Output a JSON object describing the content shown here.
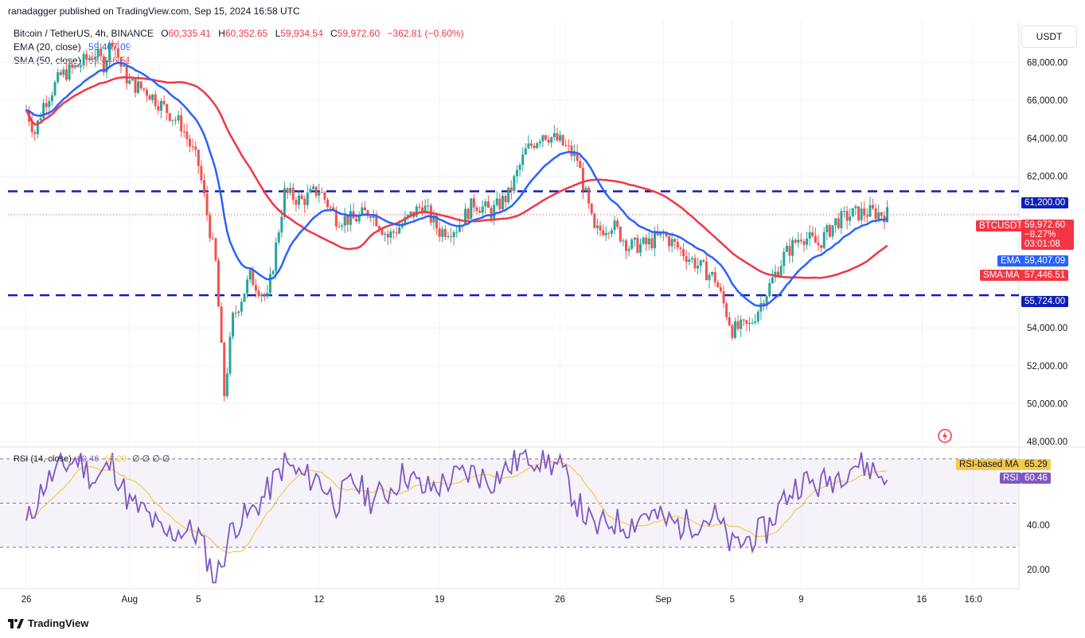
{
  "credit": "ranadagger published on TradingView.com, Sep 15, 2024 16:58 UTC",
  "symbol_line": "Bitcoin / TetherUS, 4h, BINANCE",
  "ohlc": {
    "o_label": "O",
    "o": "60,335.41",
    "h_label": "H",
    "h": "60,352.65",
    "l_label": "L",
    "l": "59,934.54",
    "c_label": "C",
    "c": "59,972.60",
    "chg": "−362.81 (−0.60%)"
  },
  "ema_legend": {
    "label": "EMA (20, close)",
    "value": "59,407.09"
  },
  "sma_legend": {
    "label": "SMA (50, close)",
    "value": "57,446.51"
  },
  "rsi_legend": {
    "label": "RSI (14, close)",
    "rsi": "60.46",
    "ma": "65.29",
    "zeros": "∅ ∅ ∅ ∅"
  },
  "currency": "USDT",
  "tags": {
    "resistance": "61,200.00",
    "support": "55,724.00",
    "btc_name": "BTCUSDT",
    "btc_price": "59,972.60",
    "btc_change": "−8.27%",
    "btc_timer": "03:01:08",
    "ema_name": "EMA",
    "ema_val": "59,407.09",
    "sma_name": "SMA:MA",
    "sma_val": "57,446.51",
    "rsi_ma_name": "RSI-based MA",
    "rsi_ma_val": "65.29",
    "rsi_name": "RSI",
    "rsi_val": "60.46"
  },
  "brand": "TradingView",
  "colors": {
    "up": "#26a69a",
    "down": "#ef5350",
    "ema": "#2962ff",
    "sma": "#f23645",
    "rsi": "#7e57c2",
    "rsima": "#f7c948",
    "level": "#0d1fb5"
  },
  "chart_data": {
    "type": "candlestick",
    "title": "Bitcoin / TetherUS, 4h, BINANCE",
    "price_axis_ticks": [
      "68,000.00",
      "66,000.00",
      "64,000.00",
      "62,000.00",
      "54,000.00",
      "52,000.00",
      "50,000.00",
      "48,000.00"
    ],
    "price_axis_values": [
      68000,
      66000,
      64000,
      62000,
      54000,
      52000,
      50000,
      48000
    ],
    "ylim": [
      47800,
      70200
    ],
    "x_ticks": [
      "26",
      "Aug",
      "5",
      "12",
      "19",
      "26",
      "Sep",
      "5",
      "9",
      "16",
      "16:0"
    ],
    "x_tick_positions_days": [
      0,
      6,
      10,
      17,
      24,
      31,
      37,
      41,
      45,
      52,
      55
    ],
    "date_range_days": [
      0,
      55.6
    ],
    "levels": [
      {
        "name": "resistance",
        "value": 61200
      },
      {
        "name": "support",
        "value": 55724
      }
    ],
    "series": [
      {
        "name": "price",
        "anchors": [
          [
            0,
            65500
          ],
          [
            0.5,
            64300
          ],
          [
            1,
            65800
          ],
          [
            2,
            67300
          ],
          [
            3,
            67800
          ],
          [
            4,
            68500
          ],
          [
            4.5,
            67900
          ],
          [
            5,
            69300
          ],
          [
            5.5,
            67800
          ],
          [
            6,
            66900
          ],
          [
            7,
            66500
          ],
          [
            8,
            65600
          ],
          [
            9,
            64700
          ],
          [
            10,
            62600
          ],
          [
            11,
            57400
          ],
          [
            11.5,
            50500
          ],
          [
            12,
            54500
          ],
          [
            13,
            56700
          ],
          [
            14,
            55500
          ],
          [
            15,
            61100
          ],
          [
            16,
            60700
          ],
          [
            17,
            61300
          ],
          [
            18,
            59800
          ],
          [
            19,
            59700
          ],
          [
            20,
            60200
          ],
          [
            21,
            58800
          ],
          [
            22,
            59600
          ],
          [
            23,
            60500
          ],
          [
            24,
            59100
          ],
          [
            25,
            59300
          ],
          [
            26,
            60600
          ],
          [
            27,
            60100
          ],
          [
            28,
            61000
          ],
          [
            29,
            63300
          ],
          [
            30,
            64300
          ],
          [
            31,
            63800
          ],
          [
            32,
            62900
          ],
          [
            33,
            59000
          ],
          [
            34,
            59500
          ],
          [
            35,
            58300
          ],
          [
            36,
            58400
          ],
          [
            37,
            58900
          ],
          [
            38,
            58100
          ],
          [
            39,
            57300
          ],
          [
            40,
            56600
          ],
          [
            41,
            53900
          ],
          [
            42,
            54100
          ],
          [
            43,
            55900
          ],
          [
            44,
            57800
          ],
          [
            45,
            58900
          ],
          [
            46,
            58400
          ],
          [
            47,
            59600
          ],
          [
            48,
            60000
          ],
          [
            49,
            60100
          ],
          [
            50,
            60000
          ]
        ]
      },
      {
        "name": "EMA (20, close)",
        "last": 59407.09
      },
      {
        "name": "SMA (50, close)",
        "last": 57446.51
      }
    ],
    "rsi": {
      "label": "RSI (14, close)",
      "ticks": [
        "40.00",
        "20.00"
      ],
      "upper": 70,
      "lower": 30,
      "middle": 50,
      "ylim": [
        12,
        75
      ],
      "anchors": [
        [
          0,
          40
        ],
        [
          1,
          58
        ],
        [
          2,
          66
        ],
        [
          3,
          70
        ],
        [
          4,
          60
        ],
        [
          5,
          68
        ],
        [
          6,
          50
        ],
        [
          7,
          45
        ],
        [
          8,
          35
        ],
        [
          9,
          38
        ],
        [
          10,
          36
        ],
        [
          11,
          15
        ],
        [
          12,
          40
        ],
        [
          13,
          45
        ],
        [
          14,
          55
        ],
        [
          15,
          68
        ],
        [
          16,
          62
        ],
        [
          17,
          61
        ],
        [
          18,
          50
        ],
        [
          19,
          60
        ],
        [
          20,
          52
        ],
        [
          21,
          55
        ],
        [
          22,
          64
        ],
        [
          23,
          56
        ],
        [
          24,
          58
        ],
        [
          25,
          62
        ],
        [
          26,
          64
        ],
        [
          27,
          60
        ],
        [
          28,
          66
        ],
        [
          29,
          72
        ],
        [
          30,
          70
        ],
        [
          31,
          66
        ],
        [
          32,
          50
        ],
        [
          33,
          38
        ],
        [
          34,
          42
        ],
        [
          35,
          40
        ],
        [
          36,
          46
        ],
        [
          37,
          42
        ],
        [
          38,
          40
        ],
        [
          39,
          42
        ],
        [
          40,
          44
        ],
        [
          41,
          30
        ],
        [
          42,
          34
        ],
        [
          43,
          38
        ],
        [
          44,
          52
        ],
        [
          45,
          60
        ],
        [
          46,
          58
        ],
        [
          47,
          62
        ],
        [
          48,
          68
        ],
        [
          49,
          66
        ],
        [
          50,
          60.46
        ]
      ],
      "last_rsi": 60.46,
      "last_ma": 65.29
    }
  }
}
